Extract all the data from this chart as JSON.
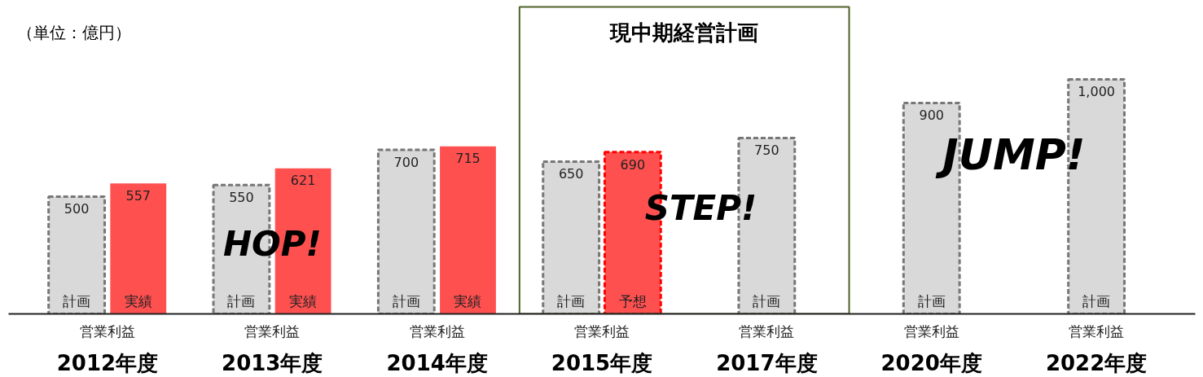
{
  "chart_data": {
    "type": "bar",
    "categories": [
      "2012年度",
      "2013年度",
      "2014年度",
      "2015年度",
      "2017年度",
      "2020年度",
      "2022年度"
    ],
    "series": [
      {
        "name": "計画",
        "color": "#d9d9d9",
        "line_style": "dashed",
        "values": [
          500,
          550,
          700,
          650,
          750,
          900,
          1000
        ],
        "value_labels": [
          "500",
          "550",
          "700",
          "650",
          "750",
          "900",
          "1,000"
        ]
      },
      {
        "name": "実績",
        "color": "#ff5050",
        "values": [
          557,
          621,
          715,
          null,
          null,
          null,
          null
        ]
      },
      {
        "name": "予想",
        "color": "#ff5050",
        "line_style": "dashed",
        "values": [
          null,
          null,
          null,
          690,
          null,
          null,
          null
        ]
      }
    ],
    "data_labels": true,
    "annotations": [
      "（単位：億円）",
      "現中期経営計画",
      "HOP!",
      "STEP!",
      "JUMP!",
      "営業利益",
      "営業利益",
      "営業利益",
      "営業利益",
      "営業利益",
      "営業利益",
      "営業利益"
    ],
    "tick_labels": "x",
    "grid": false
  }
}
